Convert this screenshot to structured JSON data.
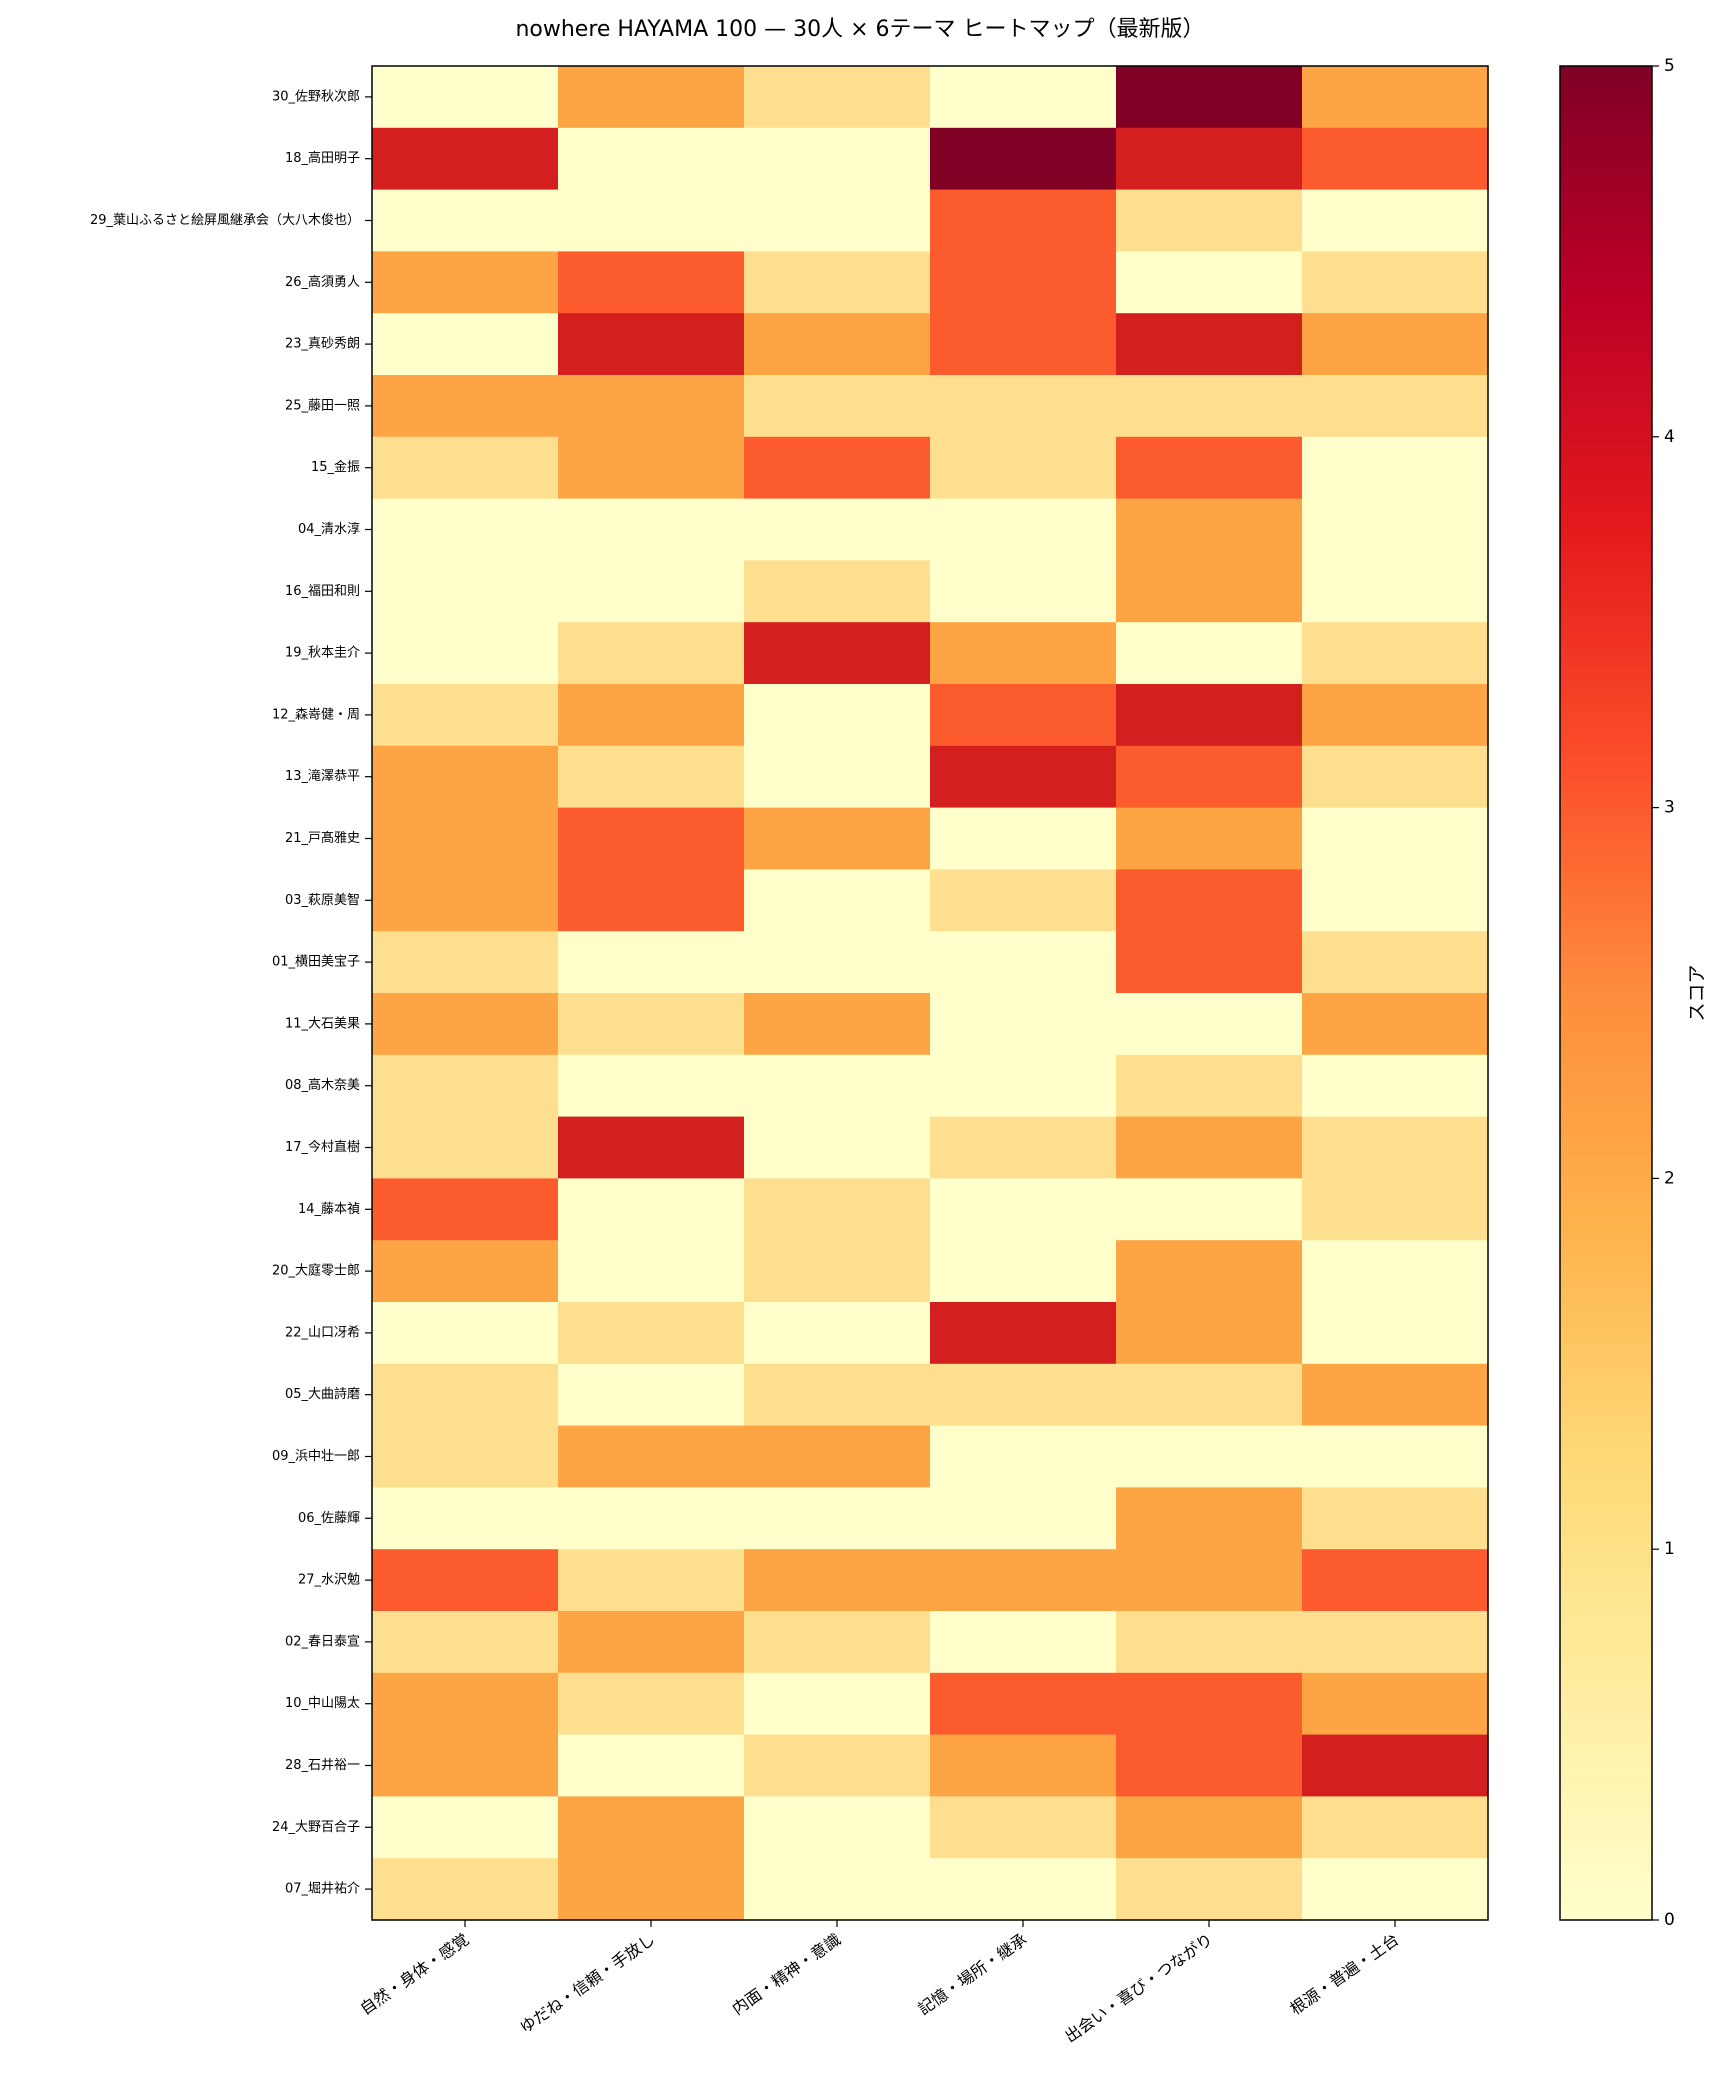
{
  "chart_data": {
    "type": "heatmap",
    "title": "nowhere HAYAMA 100 — 30人 × 6テーマ ヒートマップ（最新版）",
    "xlabel": "",
    "ylabel": "",
    "colorbar_label": "スコア",
    "colormap": "YlOrRd",
    "vmin": 0,
    "vmax": 5,
    "colorbar_ticks": [
      "0",
      "1",
      "2",
      "3",
      "4",
      "5"
    ],
    "columns": [
      "自然・身体・感覚",
      "ゆだね・信頼・手放し",
      "内面・精神・意識",
      "記憶・場所・継承",
      "出会い・喜び・つながり",
      "根源・普遍・土台"
    ],
    "rows": [
      "30_佐野秋次郎",
      "18_高田明子",
      "29_葉山ふるさと絵屏風継承会（大八木俊也）",
      "26_高須勇人",
      "23_真砂秀朗",
      "25_藤田一照",
      "15_金振",
      "04_清水淳",
      "16_福田和則",
      "19_秋本圭介",
      "12_森嵜健・周",
      "13_滝澤恭平",
      "21_戸髙雅史",
      "03_萩原美智",
      "01_横田美宝子",
      "11_大石美果",
      "08_高木奈美",
      "17_今村直樹",
      "14_藤本禎",
      "20_大庭零士郎",
      "22_山口冴希",
      "05_大曲詩磨",
      "09_浜中壮一郎",
      "06_佐藤輝",
      "27_水沢勉",
      "02_春日泰宣",
      "10_中山陽太",
      "28_石井裕一",
      "24_大野百合子",
      "07_堀井祐介"
    ],
    "values": [
      [
        0,
        2,
        1,
        0,
        5,
        2
      ],
      [
        4,
        0,
        0,
        5,
        4,
        3
      ],
      [
        0,
        0,
        0,
        3,
        1,
        0
      ],
      [
        2,
        3,
        1,
        3,
        0,
        1
      ],
      [
        0,
        4,
        2,
        3,
        4,
        2
      ],
      [
        2,
        2,
        1,
        1,
        1,
        1
      ],
      [
        1,
        2,
        3,
        1,
        3,
        0
      ],
      [
        0,
        0,
        0,
        0,
        2,
        0
      ],
      [
        0,
        0,
        1,
        0,
        2,
        0
      ],
      [
        0,
        1,
        4,
        2,
        0,
        1
      ],
      [
        1,
        2,
        0,
        3,
        4,
        2
      ],
      [
        2,
        1,
        0,
        4,
        3,
        1
      ],
      [
        2,
        3,
        2,
        0,
        2,
        0
      ],
      [
        2,
        3,
        0,
        1,
        3,
        0
      ],
      [
        1,
        0,
        0,
        0,
        3,
        1
      ],
      [
        2,
        1,
        2,
        0,
        0,
        2
      ],
      [
        1,
        0,
        0,
        0,
        1,
        0
      ],
      [
        1,
        4,
        0,
        1,
        2,
        1
      ],
      [
        3,
        0,
        1,
        0,
        0,
        1
      ],
      [
        2,
        0,
        1,
        0,
        2,
        0
      ],
      [
        0,
        1,
        0,
        4,
        2,
        0
      ],
      [
        1,
        0,
        1,
        1,
        1,
        2
      ],
      [
        1,
        2,
        2,
        0,
        0,
        0
      ],
      [
        0,
        0,
        0,
        0,
        2,
        1
      ],
      [
        3,
        1,
        2,
        2,
        2,
        3
      ],
      [
        1,
        2,
        1,
        0,
        1,
        1
      ],
      [
        2,
        1,
        0,
        3,
        3,
        2
      ],
      [
        2,
        0,
        1,
        2,
        3,
        4
      ],
      [
        0,
        2,
        0,
        1,
        2,
        1
      ],
      [
        1,
        2,
        0,
        0,
        1,
        0
      ]
    ],
    "score_colors": [
      "#ffffcc",
      "#fedf8f",
      "#fda445",
      "#fc5c2d",
      "#d41f1f",
      "#800026"
    ]
  }
}
